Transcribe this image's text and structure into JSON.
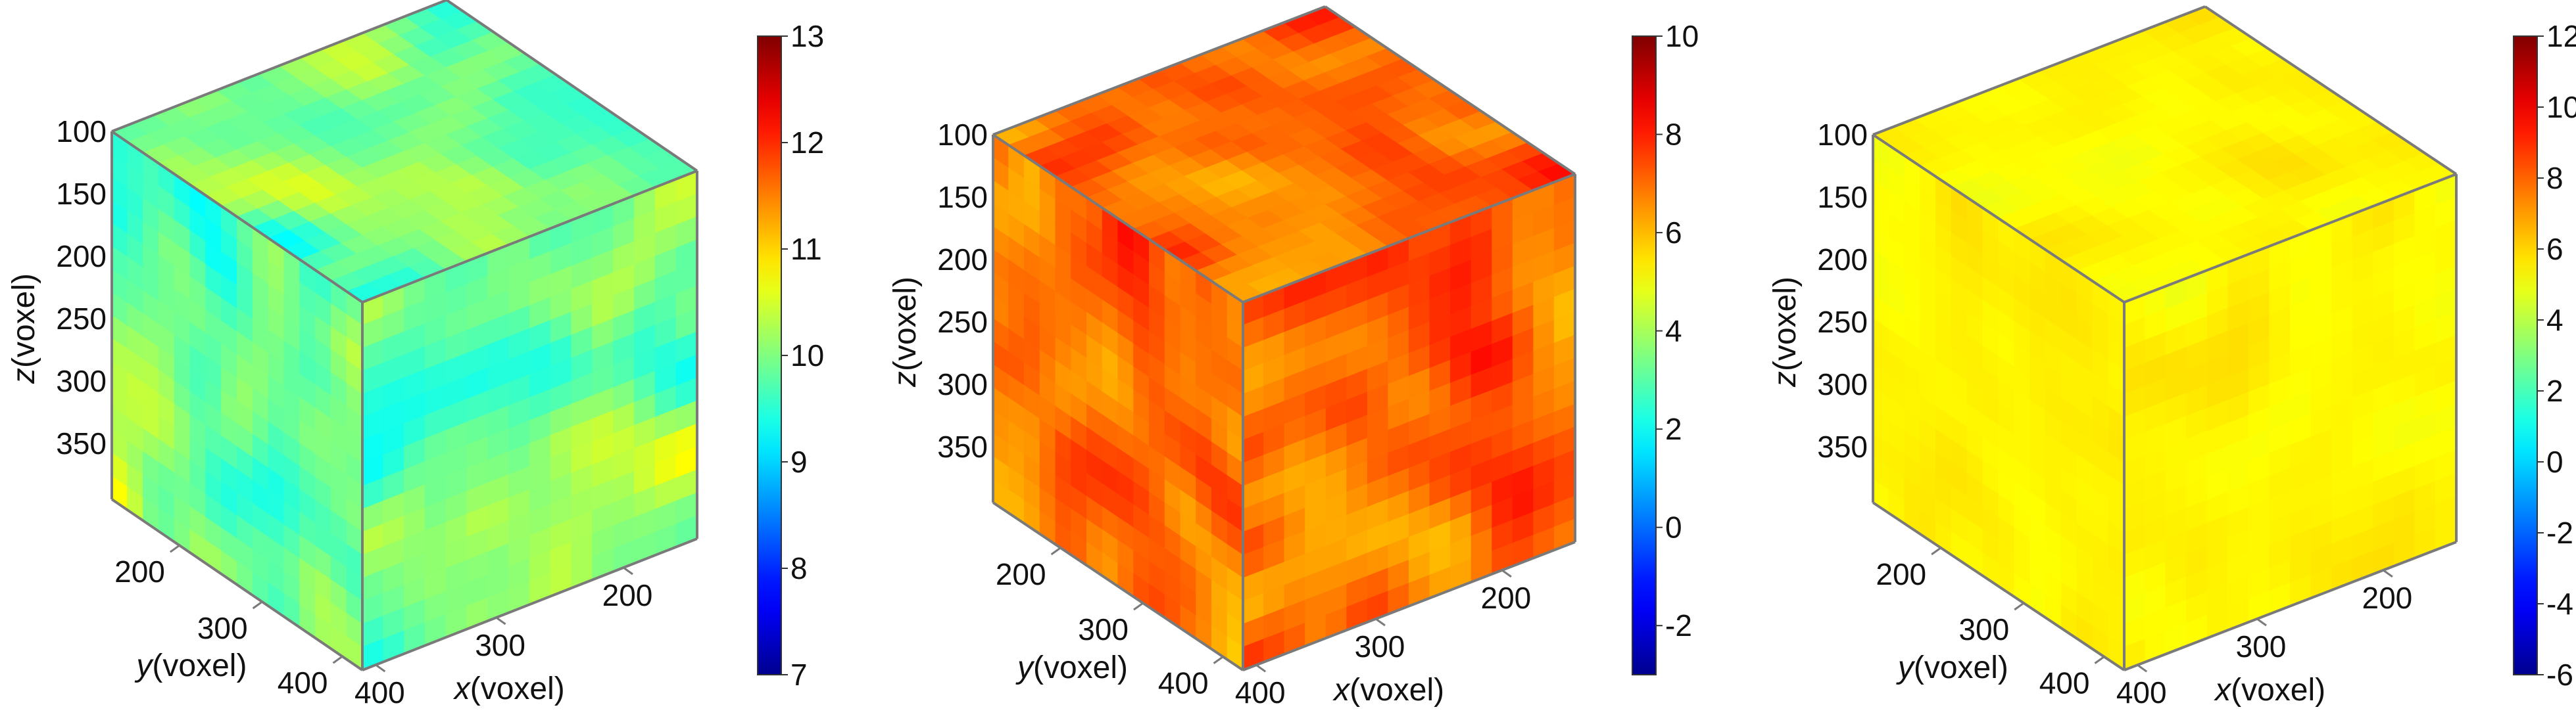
{
  "chart_data": [
    {
      "type": "heatmap",
      "title": "",
      "xlabel": {
        "var": "x",
        "unit": "(voxel)"
      },
      "ylabel": {
        "var": "y",
        "unit": "(voxel)"
      },
      "zlabel": {
        "var": "z",
        "unit": "(voxel)"
      },
      "z_ticks": [
        "100",
        "150",
        "200",
        "250",
        "300",
        "350"
      ],
      "y_ticks": [
        "200",
        "300",
        "400"
      ],
      "x_ticks": [
        "400",
        "300",
        "200"
      ],
      "colorbar": {
        "min": 7,
        "max": 13,
        "ticks": [
          "7",
          "8",
          "9",
          "10",
          "11",
          "12",
          "13"
        ]
      },
      "field": {
        "mean": 10.0,
        "spread": 0.75,
        "seed": 11
      }
    },
    {
      "type": "heatmap",
      "title": "",
      "xlabel": {
        "var": "x",
        "unit": "(voxel)"
      },
      "ylabel": {
        "var": "y",
        "unit": "(voxel)"
      },
      "zlabel": {
        "var": "z",
        "unit": "(voxel)"
      },
      "z_ticks": [
        "100",
        "150",
        "200",
        "250",
        "300",
        "350"
      ],
      "y_ticks": [
        "200",
        "300",
        "400"
      ],
      "x_ticks": [
        "400",
        "300",
        "200"
      ],
      "colorbar": {
        "min": -3,
        "max": 10,
        "ticks": [
          "-2",
          "0",
          "2",
          "4",
          "6",
          "8",
          "10"
        ]
      },
      "field": {
        "mean": 7.0,
        "spread": 1.25,
        "seed": 23
      }
    },
    {
      "type": "heatmap",
      "title": "",
      "xlabel": {
        "var": "x",
        "unit": "(voxel)"
      },
      "ylabel": {
        "var": "y",
        "unit": "(voxel)"
      },
      "zlabel": {
        "var": "z",
        "unit": "(voxel)"
      },
      "z_ticks": [
        "100",
        "150",
        "200",
        "250",
        "300",
        "350"
      ],
      "y_ticks": [
        "200",
        "300",
        "400"
      ],
      "x_ticks": [
        "400",
        "300",
        "200"
      ],
      "colorbar": {
        "min": -6,
        "max": 12,
        "ticks": [
          "-6",
          "-4",
          "-2",
          "0",
          "2",
          "4",
          "6",
          "8",
          "10",
          "12"
        ]
      },
      "field": {
        "mean": 5.4,
        "spread": 0.45,
        "seed": 37
      }
    }
  ]
}
